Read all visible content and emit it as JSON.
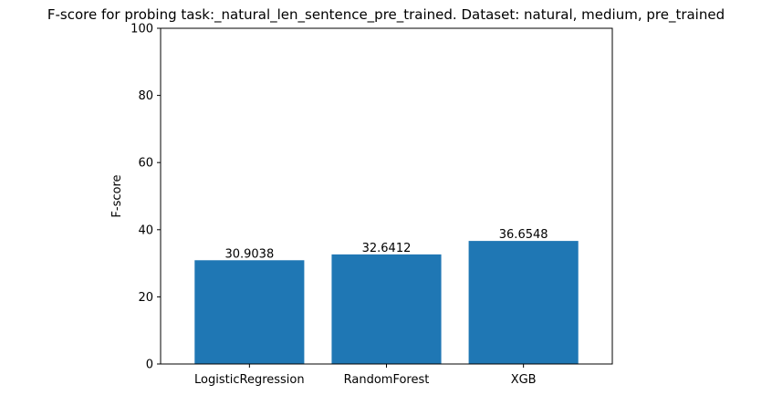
{
  "chart_data": {
    "type": "bar",
    "title": "F-score for probing task:_natural_len_sentence_pre_trained. Dataset: natural, medium, pre_trained",
    "xlabel": "",
    "ylabel": "F-score",
    "categories": [
      "LogisticRegression",
      "RandomForest",
      "XGB"
    ],
    "values": [
      30.9038,
      32.6412,
      36.6548
    ],
    "data_labels": [
      "30.9038",
      "32.6412",
      "36.6548"
    ],
    "ylim": [
      0,
      100
    ],
    "yticks": [
      0,
      20,
      40,
      60,
      80,
      100
    ],
    "ytick_labels": [
      "0",
      "20",
      "40",
      "60",
      "80",
      "100"
    ],
    "bar_color": "#1f77b4",
    "grid": false,
    "legend": "none"
  }
}
